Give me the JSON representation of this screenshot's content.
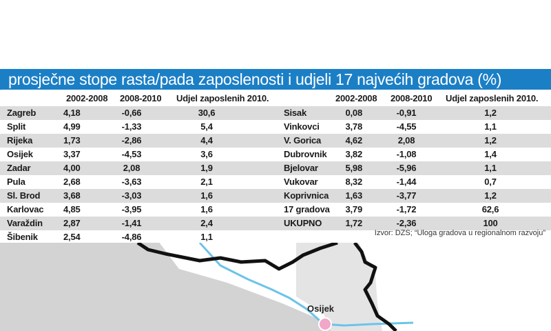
{
  "title": "prosječne stope rasta/pada zaposlenosti i udjeli 17 najvećih gradova (%)",
  "left_table": {
    "headers": [
      "2002-2008",
      "2008-2010",
      "Udjel zaposlenih 2010."
    ],
    "rows": [
      {
        "city": "Zagreb",
        "a": "4,18",
        "b": "-0,66",
        "c": "30,6"
      },
      {
        "city": "Split",
        "a": "4,99",
        "b": "-1,33",
        "c": "5,4"
      },
      {
        "city": "Rijeka",
        "a": "1,73",
        "b": "-2,86",
        "c": "4,4"
      },
      {
        "city": "Osijek",
        "a": "3,37",
        "b": "-4,53",
        "c": "3,6"
      },
      {
        "city": "Zadar",
        "a": "4,00",
        "b": "2,08",
        "c": "1,9"
      },
      {
        "city": "Pula",
        "a": "2,68",
        "b": "-3,63",
        "c": "2,1"
      },
      {
        "city": "Sl. Brod",
        "a": "3,68",
        "b": "-3,03",
        "c": "1,6"
      },
      {
        "city": "Karlovac",
        "a": "4,85",
        "b": "-3,95",
        "c": "1,6"
      },
      {
        "city": "Varaždin",
        "a": "2,87",
        "b": "-1,41",
        "c": "2,4"
      },
      {
        "city": "Šibenik",
        "a": "2,54",
        "b": "-4,86",
        "c": "1,1"
      }
    ]
  },
  "right_table": {
    "headers": [
      "2002-2008",
      "2008-2010",
      "Udjel zaposlenih 2010."
    ],
    "rows": [
      {
        "city": "Sisak",
        "a": "0,08",
        "b": "-0,91",
        "c": "1,2"
      },
      {
        "city": "Vinkovci",
        "a": "3,78",
        "b": "-4,55",
        "c": "1,1"
      },
      {
        "city": "V. Gorica",
        "a": "4,62",
        "b": "2,08",
        "c": "1,2"
      },
      {
        "city": "Dubrovnik",
        "a": "3,82",
        "b": "-1,08",
        "c": "1,4"
      },
      {
        "city": "Bjelovar",
        "a": "5,98",
        "b": "-5,96",
        "c": "1,1"
      },
      {
        "city": "Vukovar",
        "a": "8,32",
        "b": "-1,44",
        "c": "0,7"
      },
      {
        "city": "Koprivnica",
        "a": "1,63",
        "b": "-3,77",
        "c": "1,2"
      },
      {
        "city": "17 gradova",
        "a": "3,79",
        "b": "-1,72",
        "c": "62,6"
      },
      {
        "city": "UKUPNO",
        "a": "1,72",
        "b": "-2,36",
        "c": "100"
      }
    ]
  },
  "source": "Izvor: DZS; “Uloga gradova u regionalnom razvoju”",
  "map": {
    "city_label": "Osijek",
    "colors": {
      "land": "#d9d9d9",
      "border": "#111111",
      "river": "#6cc3ea",
      "marker": "#f2a6c8",
      "title_bar": "#1b7fc6"
    }
  }
}
